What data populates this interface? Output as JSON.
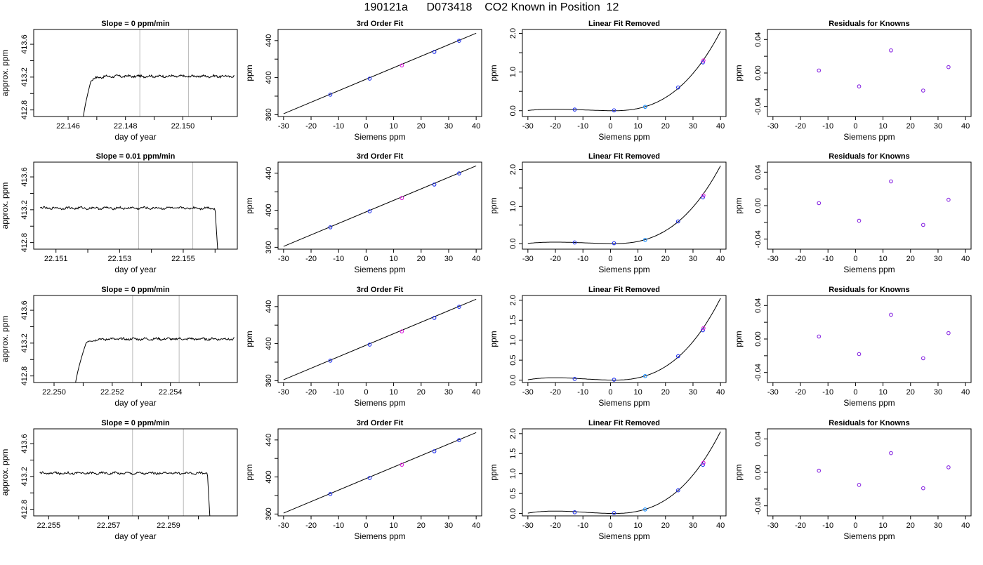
{
  "page": {
    "title": "190121a      D073418    CO2 Known in Position  12"
  },
  "chart_data": [
    {
      "row": 0,
      "col": 0,
      "type": "line",
      "title": "Slope =  0  ppm/min",
      "xlabel": "day of year",
      "ylabel": "approx. ppm",
      "xlim": [
        22.1448,
        22.1519
      ],
      "ylim": [
        412.72,
        413.78
      ],
      "xticks": [
        22.146,
        22.147,
        22.148,
        22.149,
        22.15,
        22.151
      ],
      "xtick_labels": [
        "22.146",
        "",
        "22.148",
        "",
        "22.150",
        ""
      ],
      "yticks": [
        412.8,
        413.0,
        413.2,
        413.4,
        413.6
      ],
      "ytick_labels": [
        "412.8",
        "",
        "413.2",
        "",
        "413.6"
      ],
      "vlines": [
        22.1485,
        22.1502
      ],
      "trace": {
        "shape": "rise",
        "x0": 22.1465,
        "x1": 22.1518,
        "xrise": 22.1468,
        "level": 413.21,
        "noise": 0.012,
        "start": 412.6
      }
    },
    {
      "row": 0,
      "col": 1,
      "type": "scatter",
      "title": "3rd Order Fit",
      "xlabel": "Siemens ppm",
      "ylabel": "ppm",
      "xlim": [
        -32,
        42
      ],
      "ylim": [
        358,
        452
      ],
      "xticks": [
        -30,
        -20,
        -10,
        0,
        10,
        20,
        30,
        40
      ],
      "xtick_labels": [
        "-30",
        "-20",
        "-10",
        "0",
        "10",
        "20",
        "30",
        "40"
      ],
      "yticks": [
        360,
        380,
        400,
        420,
        440
      ],
      "ytick_labels": [
        "360",
        "",
        "400",
        "",
        "440"
      ],
      "points": [
        [
          -13,
          381.6,
          "blue"
        ],
        [
          1.3,
          398.9,
          "blue"
        ],
        [
          13,
          413.2,
          "magenta"
        ],
        [
          24.8,
          427.8,
          "blue"
        ],
        [
          33.8,
          439.8,
          "blue"
        ]
      ],
      "fit_line": [
        [
          -30,
          361
        ],
        [
          40,
          448
        ]
      ]
    },
    {
      "row": 0,
      "col": 2,
      "type": "scatter",
      "title": "Linear Fit Removed",
      "xlabel": "Siemens ppm",
      "ylabel": "ppm",
      "xlim": [
        -32,
        42
      ],
      "ylim": [
        -0.15,
        2.1
      ],
      "xticks": [
        -30,
        -20,
        -10,
        0,
        10,
        20,
        30,
        40
      ],
      "xtick_labels": [
        "-30",
        "-20",
        "-10",
        "0",
        "10",
        "20",
        "30",
        "40"
      ],
      "yticks": [
        0.0,
        0.5,
        1.0,
        1.5,
        2.0
      ],
      "ytick_labels": [
        "0.0",
        "",
        "1.0",
        "",
        "2.0"
      ],
      "points": [
        [
          -13,
          0.03,
          "blue"
        ],
        [
          1.3,
          0.01,
          "blue"
        ],
        [
          12.6,
          0.1,
          "dodgerblue"
        ],
        [
          24.6,
          0.6,
          "blue"
        ],
        [
          33.6,
          1.25,
          "blue"
        ],
        [
          33.8,
          1.3,
          "magenta"
        ]
      ],
      "curve": {
        "x_at_zero": 1.5,
        "x_peak": -20,
        "peak": 0.04,
        "at_40": 2.05
      }
    },
    {
      "row": 0,
      "col": 3,
      "type": "scatter",
      "title": "Residuals for Knowns",
      "xlabel": "Siemens ppm",
      "ylabel": "ppm",
      "xlim": [
        -32,
        42
      ],
      "ylim": [
        -0.052,
        0.052
      ],
      "xticks": [
        -30,
        -20,
        -10,
        0,
        10,
        20,
        30,
        40
      ],
      "xtick_labels": [
        "-30",
        "-20",
        "-10",
        "0",
        "10",
        "20",
        "30",
        "40"
      ],
      "yticks": [
        -0.04,
        -0.02,
        0.0,
        0.02,
        0.04
      ],
      "ytick_labels": [
        "-0.04",
        "",
        "0.00",
        "",
        "0.04"
      ],
      "points": [
        [
          -13.3,
          0.003,
          "purple"
        ],
        [
          1.3,
          -0.016,
          "purple"
        ],
        [
          12.9,
          0.027,
          "purple"
        ],
        [
          24.6,
          -0.021,
          "purple"
        ],
        [
          33.8,
          0.007,
          "purple"
        ]
      ]
    },
    {
      "row": 1,
      "col": 0,
      "type": "line",
      "title": "Slope =  0.01  ppm/min",
      "xlabel": "day of year",
      "ylabel": "approx. ppm",
      "xlim": [
        22.1503,
        22.1567
      ],
      "ylim": [
        412.72,
        413.78
      ],
      "xticks": [
        22.151,
        22.152,
        22.153,
        22.154,
        22.155,
        22.156
      ],
      "xtick_labels": [
        "22.151",
        "",
        "22.153",
        "",
        "22.155",
        ""
      ],
      "yticks": [
        412.8,
        413.0,
        413.2,
        413.4,
        413.6
      ],
      "ytick_labels": [
        "412.8",
        "",
        "413.2",
        "",
        "413.6"
      ],
      "vlines": [
        22.1536,
        22.1553
      ],
      "trace": {
        "shape": "fall",
        "x0": 22.1505,
        "x1": 22.1561,
        "xfall": 22.156,
        "level": 413.22,
        "noise": 0.012,
        "end": 412.6
      }
    },
    {
      "row": 1,
      "col": 1,
      "type": "scatter",
      "title": "3rd Order Fit",
      "xlabel": "Siemens ppm",
      "ylabel": "ppm",
      "xlim": [
        -32,
        42
      ],
      "ylim": [
        358,
        452
      ],
      "xticks": [
        -30,
        -20,
        -10,
        0,
        10,
        20,
        30,
        40
      ],
      "xtick_labels": [
        "-30",
        "-20",
        "-10",
        "0",
        "10",
        "20",
        "30",
        "40"
      ],
      "yticks": [
        360,
        380,
        400,
        420,
        440
      ],
      "ytick_labels": [
        "360",
        "",
        "400",
        "",
        "440"
      ],
      "points": [
        [
          -13,
          381.6,
          "blue"
        ],
        [
          1.3,
          398.9,
          "blue"
        ],
        [
          13,
          413.2,
          "magenta"
        ],
        [
          24.8,
          427.8,
          "blue"
        ],
        [
          33.8,
          439.8,
          "blue"
        ]
      ],
      "fit_line": [
        [
          -30,
          361
        ],
        [
          40,
          448
        ]
      ]
    },
    {
      "row": 1,
      "col": 2,
      "type": "scatter",
      "title": "Linear Fit Removed",
      "xlabel": "Siemens ppm",
      "ylabel": "ppm",
      "xlim": [
        -32,
        42
      ],
      "ylim": [
        -0.15,
        2.2
      ],
      "xticks": [
        -30,
        -20,
        -10,
        0,
        10,
        20,
        30,
        40
      ],
      "xtick_labels": [
        "-30",
        "-20",
        "-10",
        "0",
        "10",
        "20",
        "30",
        "40"
      ],
      "yticks": [
        0.0,
        0.5,
        1.0,
        1.5,
        2.0
      ],
      "ytick_labels": [
        "0.0",
        "",
        "1.0",
        "",
        "2.0"
      ],
      "points": [
        [
          -13,
          0.03,
          "blue"
        ],
        [
          1.3,
          0.01,
          "blue"
        ],
        [
          12.6,
          0.1,
          "dodgerblue"
        ],
        [
          24.6,
          0.6,
          "blue"
        ],
        [
          33.6,
          1.25,
          "blue"
        ],
        [
          33.8,
          1.3,
          "magenta"
        ]
      ],
      "curve": {
        "x_at_zero": 1.5,
        "x_peak": -20,
        "peak": 0.04,
        "at_40": 2.1
      }
    },
    {
      "row": 1,
      "col": 3,
      "type": "scatter",
      "title": "Residuals for Knowns",
      "xlabel": "Siemens ppm",
      "ylabel": "ppm",
      "xlim": [
        -32,
        42
      ],
      "ylim": [
        -0.052,
        0.052
      ],
      "xticks": [
        -30,
        -20,
        -10,
        0,
        10,
        20,
        30,
        40
      ],
      "xtick_labels": [
        "-30",
        "-20",
        "-10",
        "0",
        "10",
        "20",
        "30",
        "40"
      ],
      "yticks": [
        -0.04,
        -0.02,
        0.0,
        0.02,
        0.04
      ],
      "ytick_labels": [
        "-0.04",
        "",
        "0.00",
        "",
        "0.04"
      ],
      "points": [
        [
          -13.3,
          0.003,
          "purple"
        ],
        [
          1.3,
          -0.018,
          "purple"
        ],
        [
          12.9,
          0.029,
          "purple"
        ],
        [
          24.6,
          -0.023,
          "purple"
        ],
        [
          33.8,
          0.007,
          "purple"
        ]
      ]
    },
    {
      "row": 2,
      "col": 0,
      "type": "line",
      "title": "Slope =  0  ppm/min",
      "xlabel": "day of year",
      "ylabel": "approx. ppm",
      "xlim": [
        22.2493,
        22.2563
      ],
      "ylim": [
        412.72,
        413.78
      ],
      "xticks": [
        22.25,
        22.251,
        22.252,
        22.253,
        22.254,
        22.255
      ],
      "xtick_labels": [
        "22.250",
        "",
        "22.252",
        "",
        "22.254",
        ""
      ],
      "yticks": [
        412.8,
        413.0,
        413.2,
        413.4,
        413.6
      ],
      "ytick_labels": [
        "412.8",
        "",
        "413.2",
        "",
        "413.6"
      ],
      "vlines": [
        22.2527,
        22.2543
      ],
      "trace": {
        "shape": "rise",
        "x0": 22.2507,
        "x1": 22.2562,
        "xrise": 22.2511,
        "level": 413.25,
        "noise": 0.012,
        "start": 412.6
      }
    },
    {
      "row": 2,
      "col": 1,
      "type": "scatter",
      "title": "3rd Order Fit",
      "xlabel": "Siemens ppm",
      "ylabel": "ppm",
      "xlim": [
        -32,
        42
      ],
      "ylim": [
        358,
        452
      ],
      "xticks": [
        -30,
        -20,
        -10,
        0,
        10,
        20,
        30,
        40
      ],
      "xtick_labels": [
        "-30",
        "-20",
        "-10",
        "0",
        "10",
        "20",
        "30",
        "40"
      ],
      "yticks": [
        360,
        380,
        400,
        420,
        440
      ],
      "ytick_labels": [
        "360",
        "",
        "400",
        "",
        "440"
      ],
      "points": [
        [
          -13,
          381.6,
          "blue"
        ],
        [
          1.3,
          398.9,
          "blue"
        ],
        [
          13,
          413.2,
          "magenta"
        ],
        [
          24.8,
          427.8,
          "blue"
        ],
        [
          33.8,
          439.8,
          "blue"
        ]
      ],
      "fit_line": [
        [
          -30,
          361
        ],
        [
          40,
          448
        ]
      ]
    },
    {
      "row": 2,
      "col": 2,
      "type": "scatter",
      "title": "Linear Fit Removed",
      "xlabel": "Siemens ppm",
      "ylabel": "ppm",
      "xlim": [
        -32,
        42
      ],
      "ylim": [
        -0.06,
        2.12
      ],
      "xticks": [
        -30,
        -20,
        -10,
        0,
        10,
        20,
        30,
        40
      ],
      "xtick_labels": [
        "-30",
        "-20",
        "-10",
        "0",
        "10",
        "20",
        "30",
        "40"
      ],
      "yticks": [
        0.0,
        0.5,
        1.0,
        1.5,
        2.0
      ],
      "ytick_labels": [
        "0.0",
        "0.5",
        "1.0",
        "1.5",
        "2.0"
      ],
      "points": [
        [
          -13,
          0.03,
          "blue"
        ],
        [
          1.3,
          0.01,
          "blue"
        ],
        [
          12.6,
          0.1,
          "dodgerblue"
        ],
        [
          24.6,
          0.6,
          "blue"
        ],
        [
          33.6,
          1.25,
          "blue"
        ],
        [
          33.8,
          1.3,
          "magenta"
        ]
      ],
      "curve": {
        "x_at_zero": 1.5,
        "x_peak": -20,
        "peak": 0.06,
        "at_40": 2.05
      }
    },
    {
      "row": 2,
      "col": 3,
      "type": "scatter",
      "title": "Residuals for Knowns",
      "xlabel": "Siemens ppm",
      "ylabel": "ppm",
      "xlim": [
        -32,
        42
      ],
      "ylim": [
        -0.052,
        0.052
      ],
      "xticks": [
        -30,
        -20,
        -10,
        0,
        10,
        20,
        30,
        40
      ],
      "xtick_labels": [
        "-30",
        "-20",
        "-10",
        "0",
        "10",
        "20",
        "30",
        "40"
      ],
      "yticks": [
        -0.04,
        -0.02,
        0.0,
        0.02,
        0.04
      ],
      "ytick_labels": [
        "-0.04",
        "",
        "0.00",
        "",
        "0.04"
      ],
      "points": [
        [
          -13.3,
          0.003,
          "purple"
        ],
        [
          1.3,
          -0.018,
          "purple"
        ],
        [
          12.9,
          0.029,
          "purple"
        ],
        [
          24.6,
          -0.023,
          "purple"
        ],
        [
          33.8,
          0.007,
          "purple"
        ]
      ]
    },
    {
      "row": 3,
      "col": 0,
      "type": "line",
      "title": "Slope =  0  ppm/min",
      "xlabel": "day of year",
      "ylabel": "approx. ppm",
      "xlim": [
        22.2545,
        22.2613
      ],
      "ylim": [
        412.72,
        413.78
      ],
      "xticks": [
        22.255,
        22.256,
        22.257,
        22.258,
        22.259,
        22.26
      ],
      "xtick_labels": [
        "22.255",
        "",
        "22.257",
        "",
        "22.259",
        ""
      ],
      "yticks": [
        412.8,
        413.0,
        413.2,
        413.4,
        413.6
      ],
      "ytick_labels": [
        "412.8",
        "",
        "413.2",
        "",
        "413.6"
      ],
      "vlines": [
        22.2578,
        22.2595
      ],
      "trace": {
        "shape": "fall",
        "x0": 22.2547,
        "x1": 22.2604,
        "xfall": 22.2603,
        "level": 413.24,
        "noise": 0.012,
        "end": 412.6
      }
    },
    {
      "row": 3,
      "col": 1,
      "type": "scatter",
      "title": "3rd Order Fit",
      "xlabel": "Siemens ppm",
      "ylabel": "ppm",
      "xlim": [
        -32,
        42
      ],
      "ylim": [
        358,
        452
      ],
      "xticks": [
        -30,
        -20,
        -10,
        0,
        10,
        20,
        30,
        40
      ],
      "xtick_labels": [
        "-30",
        "-20",
        "-10",
        "0",
        "10",
        "20",
        "30",
        "40"
      ],
      "yticks": [
        360,
        380,
        400,
        420,
        440
      ],
      "ytick_labels": [
        "360",
        "",
        "400",
        "",
        "440"
      ],
      "points": [
        [
          -13,
          381.6,
          "blue"
        ],
        [
          1.3,
          398.9,
          "blue"
        ],
        [
          13,
          413.2,
          "magenta"
        ],
        [
          24.8,
          427.8,
          "blue"
        ],
        [
          33.8,
          439.8,
          "blue"
        ]
      ],
      "fit_line": [
        [
          -30,
          361
        ],
        [
          40,
          448
        ]
      ]
    },
    {
      "row": 3,
      "col": 2,
      "type": "scatter",
      "title": "Linear Fit Removed",
      "xlabel": "Siemens ppm",
      "ylabel": "ppm",
      "xlim": [
        -32,
        42
      ],
      "ylim": [
        -0.06,
        2.12
      ],
      "xticks": [
        -30,
        -20,
        -10,
        0,
        10,
        20,
        30,
        40
      ],
      "xtick_labels": [
        "-30",
        "-20",
        "-10",
        "0",
        "10",
        "20",
        "30",
        "40"
      ],
      "yticks": [
        0.0,
        0.5,
        1.0,
        1.5,
        2.0
      ],
      "ytick_labels": [
        "0.0",
        "0.5",
        "1.0",
        "1.5",
        "2.0"
      ],
      "points": [
        [
          -13,
          0.03,
          "blue"
        ],
        [
          1.3,
          0.01,
          "blue"
        ],
        [
          12.6,
          0.1,
          "dodgerblue"
        ],
        [
          24.6,
          0.58,
          "blue"
        ],
        [
          33.6,
          1.22,
          "blue"
        ],
        [
          33.8,
          1.27,
          "magenta"
        ]
      ],
      "curve": {
        "x_at_zero": 1.5,
        "x_peak": -20,
        "peak": 0.06,
        "at_40": 2.05
      }
    },
    {
      "row": 3,
      "col": 3,
      "type": "scatter",
      "title": "Residuals for Knowns",
      "xlabel": "Siemens ppm",
      "ylabel": "ppm",
      "xlim": [
        -32,
        42
      ],
      "ylim": [
        -0.052,
        0.052
      ],
      "xticks": [
        -30,
        -20,
        -10,
        0,
        10,
        20,
        30,
        40
      ],
      "xtick_labels": [
        "-30",
        "-20",
        "-10",
        "0",
        "10",
        "20",
        "30",
        "40"
      ],
      "yticks": [
        -0.04,
        -0.02,
        0.0,
        0.02,
        0.04
      ],
      "ytick_labels": [
        "-0.04",
        "",
        "0.00",
        "",
        "0.04"
      ],
      "points": [
        [
          -13.3,
          0.002,
          "purple"
        ],
        [
          1.3,
          -0.015,
          "purple"
        ],
        [
          12.9,
          0.023,
          "purple"
        ],
        [
          24.6,
          -0.019,
          "purple"
        ],
        [
          33.8,
          0.006,
          "purple"
        ]
      ]
    }
  ]
}
